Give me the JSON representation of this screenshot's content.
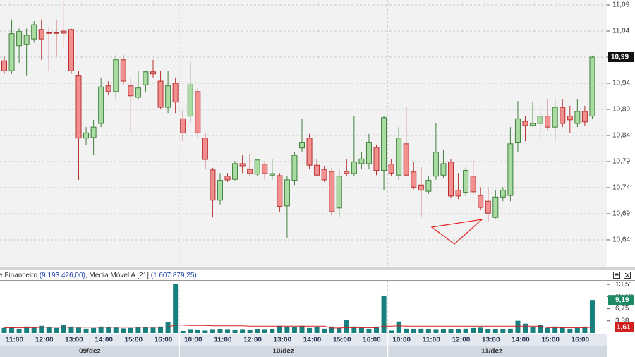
{
  "chart_data": {
    "type": "candlestick",
    "categories": [
      null,
      "11:00",
      null,
      null,
      null,
      "12:00",
      null,
      null,
      null,
      "13:00",
      null,
      null,
      null,
      "14:00",
      null,
      null,
      null,
      "15:00",
      null,
      null,
      null,
      "16:00",
      null,
      null,
      null,
      "10:00",
      null,
      null,
      null,
      "11:00",
      null,
      null,
      null,
      "12:00",
      null,
      null,
      null,
      "13:00",
      null,
      null,
      null,
      "14:00",
      null,
      null,
      null,
      "15:00",
      null,
      null,
      null,
      "16:00",
      null,
      null,
      null,
      "10:00",
      null,
      null,
      null,
      "11:00",
      null,
      null,
      null,
      "12:00",
      null,
      null,
      null,
      "13:00",
      null,
      null,
      null,
      "14:00",
      null,
      null,
      null,
      "15:00",
      null,
      null,
      null,
      "16:00",
      null,
      null
    ],
    "days": [
      "09/dez",
      null,
      null,
      null,
      null,
      null,
      null,
      null,
      null,
      null,
      null,
      null,
      null,
      null,
      null,
      null,
      null,
      null,
      null,
      null,
      null,
      null,
      null,
      null,
      "10/dez",
      null,
      null,
      null,
      null,
      null,
      null,
      null,
      null,
      null,
      null,
      null,
      null,
      null,
      null,
      null,
      null,
      null,
      null,
      null,
      null,
      null,
      null,
      null,
      null,
      null,
      null,
      null,
      "11/dez",
      null,
      null,
      null,
      null,
      null,
      null,
      null,
      null,
      null,
      null,
      null,
      null,
      null,
      null,
      null,
      null,
      null,
      null,
      null,
      null,
      null,
      null,
      null,
      null,
      null,
      null,
      null
    ],
    "open": [
      10.983,
      10.964,
      11.012,
      11.014,
      11.025,
      11.043,
      11.037,
      11.037,
      11.04,
      11.043,
      10.954,
      10.835,
      10.836,
      10.863,
      10.935,
      10.924,
      10.985,
      10.935,
      10.913,
      10.937,
      10.962,
      10.944,
      10.894,
      10.94,
      10.872,
      10.877,
      10.924,
      10.835,
      10.774,
      10.716,
      10.762,
      10.756,
      10.786,
      10.775,
      10.766,
      10.785,
      10.764,
      10.763,
      10.705,
      10.754,
      10.816,
      10.835,
      10.783,
      10.775,
      10.771,
      10.701,
      10.771,
      10.767,
      10.786,
      10.786,
      10.817,
      10.773,
      10.785,
      10.764,
      10.824,
      10.77,
      10.745,
      10.733,
      10.762,
      10.764,
      10.789,
      10.735,
      10.731,
      10.762,
      10.725,
      10.714,
      10.683,
      10.722,
      10.725,
      10.827,
      10.867,
      10.859,
      10.863,
      10.877,
      10.856,
      10.894,
      10.877,
      10.863,
      10.886,
      10.877
    ],
    "high": [
      10.991,
      11.062,
      11.045,
      11.045,
      11.059,
      11.062,
      11.048,
      11.062,
      11.099,
      11.045,
      10.964,
      10.856,
      10.87,
      10.951,
      10.944,
      10.994,
      10.994,
      10.951,
      10.964,
      10.964,
      10.985,
      10.964,
      10.964,
      10.951,
      10.886,
      10.981,
      10.931,
      10.845,
      10.778,
      10.768,
      10.768,
      10.791,
      10.802,
      10.805,
      10.795,
      10.791,
      10.795,
      10.768,
      10.762,
      10.809,
      10.872,
      10.843,
      10.795,
      10.782,
      10.778,
      10.775,
      10.795,
      10.877,
      10.809,
      10.843,
      10.822,
      10.877,
      10.795,
      10.856,
      10.894,
      10.789,
      10.779,
      10.762,
      10.863,
      10.813,
      10.795,
      10.768,
      10.778,
      10.795,
      10.741,
      10.741,
      10.735,
      10.741,
      10.856,
      10.906,
      10.877,
      10.904,
      10.897,
      10.91,
      10.91,
      10.91,
      10.897,
      10.91,
      10.897,
      10.993
    ],
    "low": [
      10.958,
      10.958,
      10.978,
      10.954,
      11.018,
      10.985,
      10.964,
      10.991,
      11.005,
      10.958,
      10.755,
      10.822,
      10.802,
      10.856,
      10.917,
      10.91,
      10.937,
      10.845,
      10.908,
      10.924,
      10.951,
      10.89,
      10.883,
      10.883,
      10.829,
      10.863,
      10.836,
      10.775,
      10.683,
      10.708,
      10.751,
      10.754,
      10.768,
      10.762,
      10.762,
      10.755,
      10.755,
      10.694,
      10.643,
      10.745,
      10.809,
      10.775,
      10.762,
      10.751,
      10.687,
      10.683,
      10.762,
      10.762,
      10.775,
      10.775,
      10.764,
      10.735,
      10.762,
      10.755,
      10.762,
      10.737,
      10.683,
      10.728,
      10.755,
      10.759,
      10.721,
      10.718,
      10.724,
      10.728,
      10.697,
      10.674,
      10.681,
      10.714,
      10.714,
      10.809,
      10.829,
      10.856,
      10.829,
      10.85,
      10.829,
      10.856,
      10.845,
      10.856,
      10.859,
      10.872
    ],
    "close": [
      10.964,
      11.035,
      11.039,
      11.032,
      11.052,
      11.025,
      11.036,
      11.036,
      11.036,
      10.964,
      10.835,
      10.845,
      10.856,
      10.933,
      10.924,
      10.985,
      10.944,
      10.916,
      10.931,
      10.962,
      10.958,
      10.894,
      10.935,
      10.904,
      10.845,
      10.937,
      10.845,
      10.794,
      10.716,
      10.754,
      10.755,
      10.786,
      10.782,
      10.767,
      10.793,
      10.767,
      10.767,
      10.704,
      10.755,
      10.802,
      10.827,
      10.783,
      10.764,
      10.755,
      10.694,
      10.762,
      10.767,
      10.789,
      10.795,
      10.827,
      10.773,
      10.874,
      10.768,
      10.835,
      10.764,
      10.741,
      10.735,
      10.754,
      10.808,
      10.786,
      10.724,
      10.724,
      10.773,
      10.732,
      10.702,
      10.691,
      10.722,
      10.735,
      10.824,
      10.872,
      10.859,
      10.863,
      10.877,
      10.856,
      10.894,
      10.863,
      10.87,
      10.886,
      10.866,
      10.99
    ],
    "last_label": "10,99",
    "up_color": "#a9dba3",
    "down_color": "#f29090",
    "ylim": [
      10.5886,
      11.0995
    ],
    "yticks": [
      {
        "value": 11.09,
        "label": "11,09"
      },
      {
        "value": 11.04,
        "label": "11,04"
      },
      {
        "value": 10.99,
        "label": "10,99"
      },
      {
        "value": 10.94,
        "label": "10,94"
      },
      {
        "value": 10.89,
        "label": "10,89"
      },
      {
        "value": 10.84,
        "label": "10,84"
      },
      {
        "value": 10.79,
        "label": "10,79"
      },
      {
        "value": 10.74,
        "label": "10,74"
      },
      {
        "value": 10.69,
        "label": "10,69"
      },
      {
        "value": 10.64,
        "label": "10,64"
      }
    ],
    "grid": true,
    "volume": {
      "header": [
        "e Financeiro ",
        "(9.193.426,00)",
        ", Média Móvel A [21] ",
        "(1.607.879,25)"
      ],
      "values": [
        1.4,
        1.6,
        1.2,
        1.8,
        1.5,
        2.0,
        1.6,
        1.4,
        2.2,
        1.8,
        1.5,
        1.2,
        1.4,
        1.8,
        1.6,
        1.5,
        1.3,
        1.4,
        1.6,
        1.6,
        1.5,
        1.8,
        3.0,
        13.7,
        0.6,
        0.9,
        0.8,
        0.7,
        0.9,
        1.0,
        0.9,
        0.8,
        0.9,
        0.8,
        1.0,
        0.9,
        1.1,
        2.0,
        1.8,
        1.6,
        2.0,
        1.4,
        1.6,
        1.2,
        1.8,
        1.4,
        3.6,
        1.8,
        1.6,
        1.2,
        1.8,
        10.4,
        0.7,
        3.2,
        1.2,
        1.0,
        1.2,
        1.0,
        0.9,
        1.0,
        1.1,
        1.0,
        1.2,
        1.4,
        1.5,
        1.0,
        1.1,
        1.0,
        1.2,
        3.4,
        2.6,
        1.6,
        2.2,
        1.4,
        1.8,
        1.6,
        1.2,
        1.4,
        1.8,
        9.19
      ],
      "last_label": "9,19",
      "color": "#17807e",
      "ma": {
        "values": [
          1.5,
          1.5,
          1.5,
          1.5,
          1.5,
          1.6,
          1.6,
          1.6,
          1.6,
          1.6,
          1.6,
          1.6,
          1.6,
          1.6,
          1.6,
          1.6,
          1.6,
          1.6,
          1.6,
          1.6,
          1.6,
          1.6,
          1.7,
          2.2,
          2.2,
          2.1,
          2.1,
          2.1,
          2.0,
          2.0,
          2.0,
          2.0,
          2.0,
          1.9,
          1.9,
          1.9,
          1.9,
          1.9,
          1.9,
          1.9,
          1.9,
          1.9,
          1.9,
          1.9,
          1.4,
          1.4,
          1.5,
          1.5,
          1.5,
          1.5,
          1.5,
          1.9,
          1.9,
          2.0,
          1.9,
          1.9,
          1.9,
          1.9,
          1.9,
          1.9,
          1.9,
          1.9,
          1.9,
          1.9,
          1.9,
          1.9,
          1.9,
          1.9,
          1.9,
          1.9,
          1.9,
          1.9,
          1.9,
          1.5,
          1.5,
          1.5,
          1.5,
          1.5,
          1.5,
          1.61
        ],
        "color": "#d22020",
        "last_label": "1,61"
      },
      "ylim": [
        0,
        14.12
      ],
      "yticks": [
        {
          "value": 3.38,
          "label": "3,38"
        },
        {
          "value": 6.75,
          "label": "6,75"
        },
        {
          "value": 10.13,
          "label": "10,13"
        },
        {
          "value": 13.51,
          "label": "13,51"
        }
      ]
    }
  }
}
